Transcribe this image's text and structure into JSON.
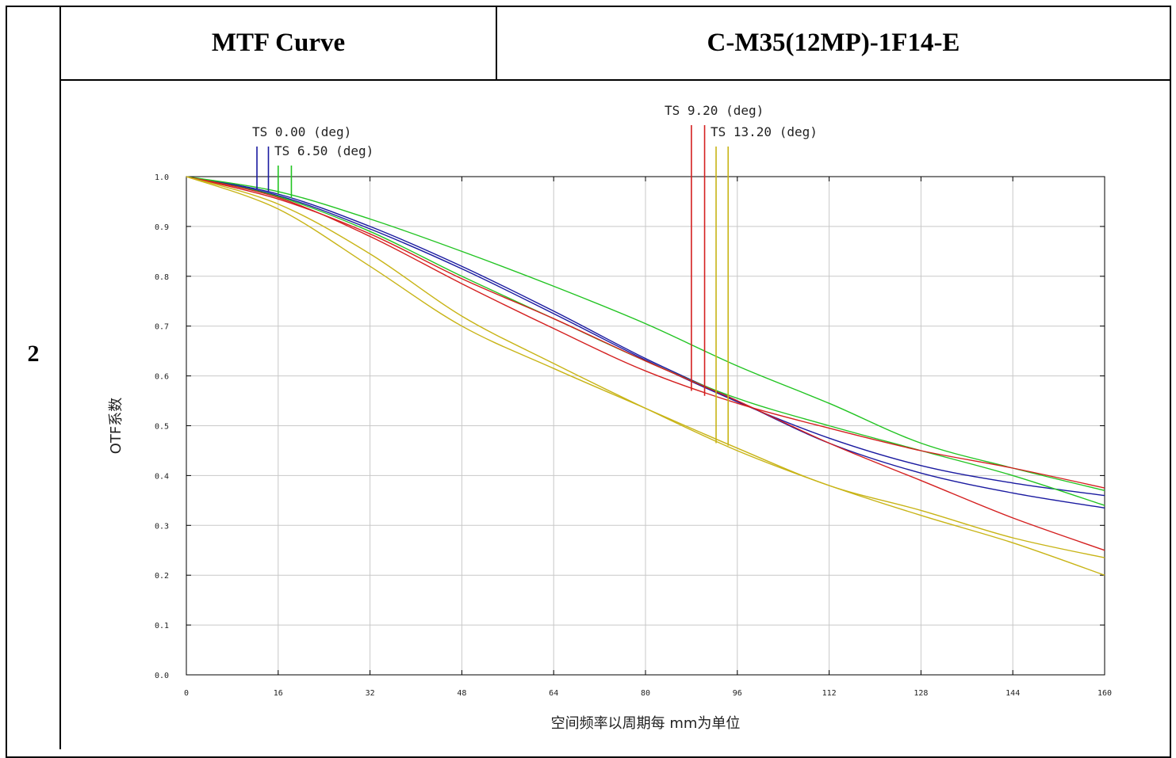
{
  "table": {
    "row_number": "2",
    "header_left": "MTF Curve",
    "header_right": "C-M35(12MP)-1F14-E"
  },
  "chart_data": {
    "type": "line",
    "xlabel": "空间频率以周期每 mm为单位",
    "ylabel": "OTF系数",
    "xlim": [
      0,
      160
    ],
    "ylim": [
      0,
      1.0
    ],
    "x_ticks": [
      "0",
      "16",
      "32",
      "48",
      "64",
      "80",
      "96",
      "112",
      "128",
      "144",
      "160"
    ],
    "y_ticks": [
      "0.0",
      "0.1",
      "0.2",
      "0.3",
      "0.4",
      "0.5",
      "0.6",
      "0.7",
      "0.8",
      "0.9",
      "1.0"
    ],
    "grid": true,
    "x": [
      0,
      16,
      32,
      48,
      64,
      80,
      96,
      112,
      128,
      144,
      160
    ],
    "series": [
      {
        "color": "#1a1aa0",
        "values": [
          1.0,
          0.965,
          0.9,
          0.82,
          0.73,
          0.635,
          0.55,
          0.465,
          0.405,
          0.365,
          0.335
        ]
      },
      {
        "color": "#1a1aa0",
        "values": [
          1.0,
          0.962,
          0.895,
          0.815,
          0.725,
          0.632,
          0.548,
          0.475,
          0.42,
          0.385,
          0.36
        ]
      },
      {
        "color": "#22c422",
        "values": [
          1.0,
          0.97,
          0.915,
          0.85,
          0.78,
          0.705,
          0.62,
          0.545,
          0.465,
          0.415,
          0.37
        ]
      },
      {
        "color": "#22c422",
        "values": [
          1.0,
          0.96,
          0.89,
          0.8,
          0.715,
          0.63,
          0.555,
          0.5,
          0.45,
          0.4,
          0.34
        ]
      },
      {
        "color": "#d42020",
        "values": [
          1.0,
          0.958,
          0.88,
          0.785,
          0.695,
          0.61,
          0.545,
          0.495,
          0.45,
          0.415,
          0.375
        ]
      },
      {
        "color": "#d42020",
        "values": [
          1.0,
          0.955,
          0.885,
          0.795,
          0.715,
          0.63,
          0.55,
          0.465,
          0.39,
          0.315,
          0.25
        ]
      },
      {
        "color": "#c8b416",
        "values": [
          1.0,
          0.945,
          0.845,
          0.72,
          0.625,
          0.535,
          0.45,
          0.38,
          0.32,
          0.265,
          0.2
        ]
      },
      {
        "color": "#c8b416",
        "values": [
          1.0,
          0.935,
          0.82,
          0.7,
          0.615,
          0.535,
          0.455,
          0.38,
          0.33,
          0.275,
          0.235
        ]
      }
    ],
    "annotations": [
      {
        "label": "TS 0.00 (deg)",
        "x_values": [
          12.3,
          14.3
        ],
        "color": "#1a1aa0",
        "y_values": [
          0.975,
          0.97
        ]
      },
      {
        "label": "TS 6.50 (deg)",
        "x_values": [
          16.0,
          18.3
        ],
        "color": "#22c422",
        "y_values": [
          0.965,
          0.957
        ]
      },
      {
        "label": "TS 9.20 (deg)",
        "x_values": [
          88.0,
          90.3
        ],
        "color": "#d42020",
        "y_values": [
          0.57,
          0.56
        ]
      },
      {
        "label": "TS 13.20 (deg)",
        "x_values": [
          92.3,
          94.4
        ],
        "color": "#c8b416",
        "y_values": [
          0.465,
          0.46
        ]
      }
    ]
  }
}
